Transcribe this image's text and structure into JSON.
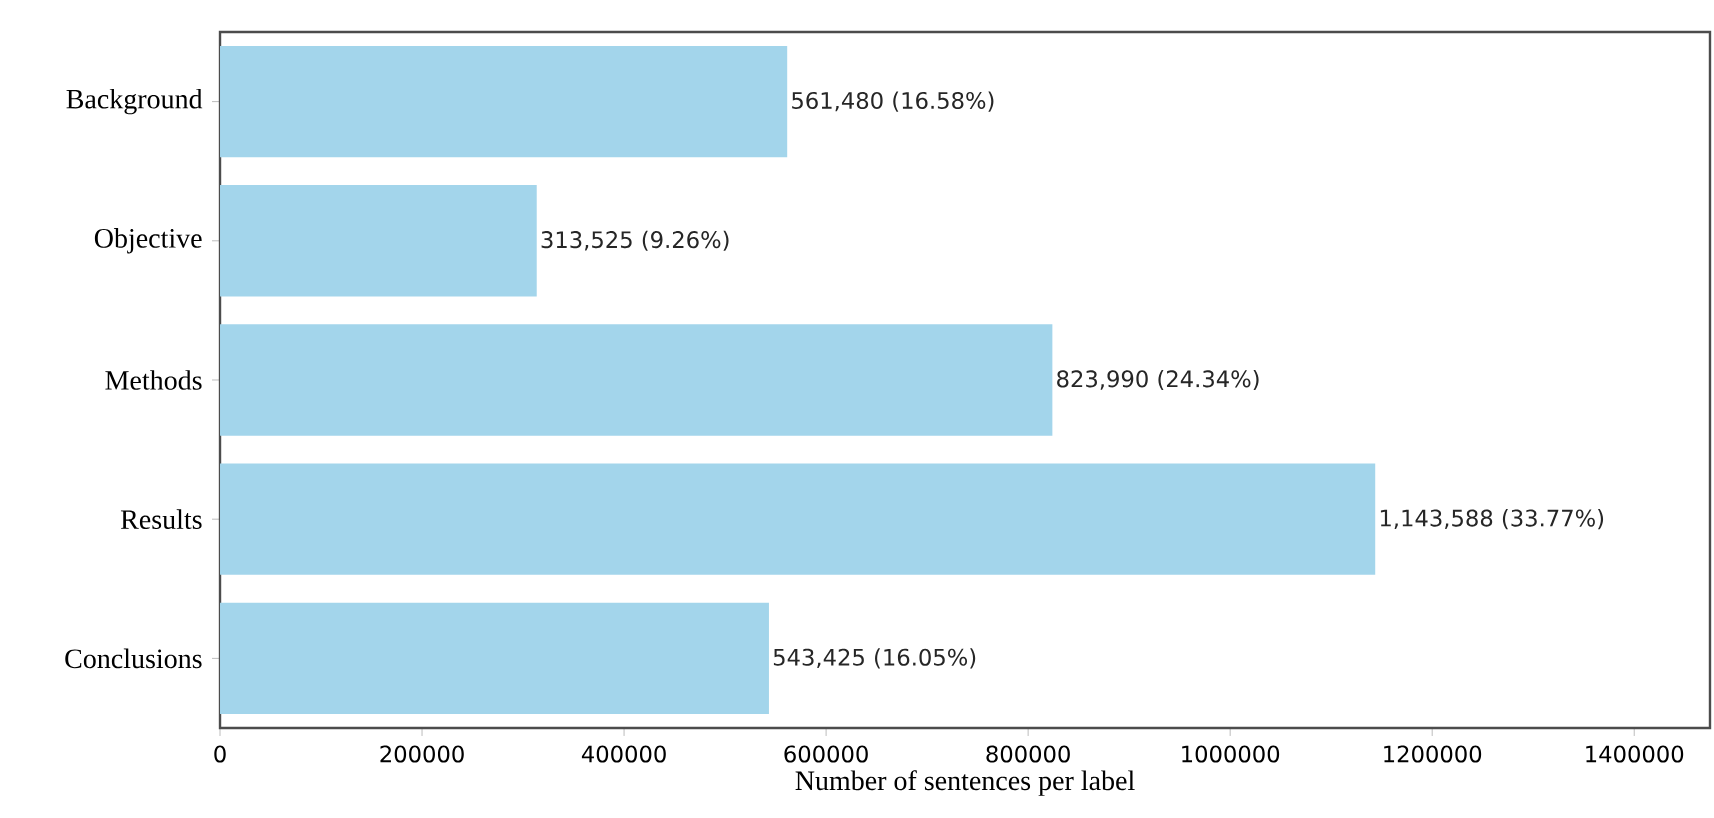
{
  "chart_data": {
    "type": "bar",
    "orientation": "horizontal",
    "xlabel": "Number of sentences per label",
    "categories": [
      "Background",
      "Objective",
      "Methods",
      "Results",
      "Conclusions"
    ],
    "values": [
      561480,
      313525,
      823990,
      1143588,
      543425
    ],
    "value_labels": [
      "561,480 (16.58%)",
      "313,525 (9.26%)",
      "823,990 (24.34%)",
      "1,143,588 (33.77%)",
      "543,425 (16.05%)"
    ],
    "color": "#a3d5eb",
    "xlim": [
      0,
      1475000
    ],
    "xticks": [
      0,
      200000,
      400000,
      600000,
      800000,
      1000000,
      1200000,
      1400000
    ]
  }
}
